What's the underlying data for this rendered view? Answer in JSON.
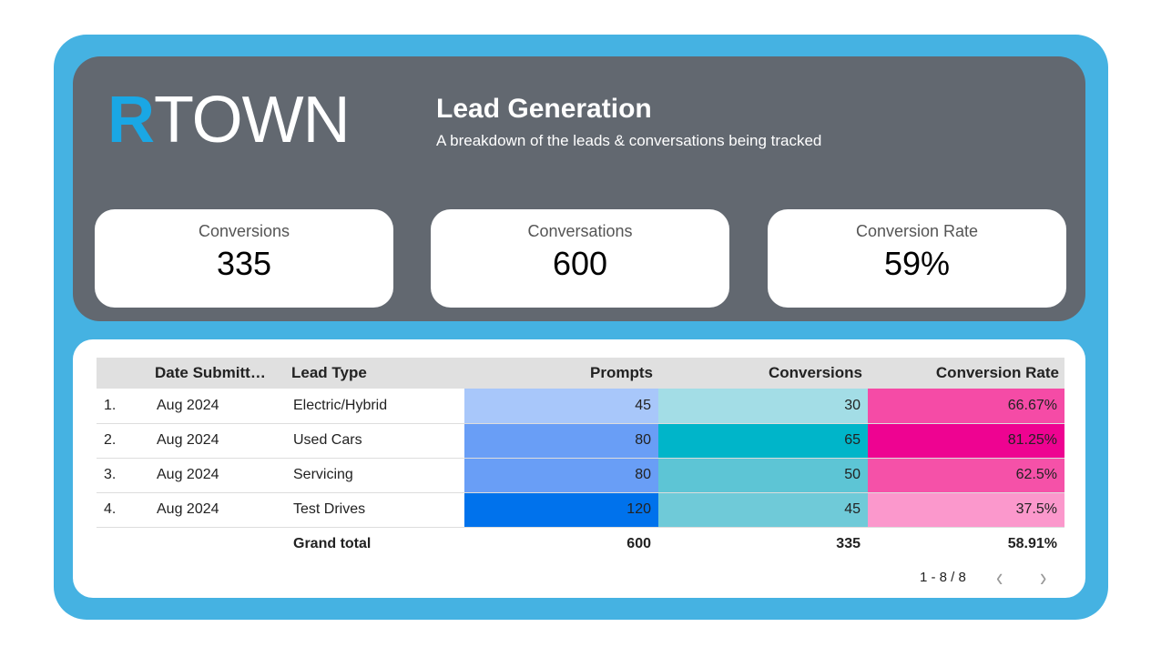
{
  "logo": {
    "accent": "R",
    "rest": "TOWN"
  },
  "header": {
    "title": "Lead Generation",
    "subtitle": "A breakdown of the leads & conversations being tracked"
  },
  "kpis": [
    {
      "label": "Conversions",
      "value": "335"
    },
    {
      "label": "Conversations",
      "value": "600"
    },
    {
      "label": "Conversion Rate",
      "value": "59%"
    }
  ],
  "table": {
    "columns": [
      "",
      "Date Submitt…",
      "Lead Type",
      "Prompts",
      "Conversions",
      "Conversion Rate"
    ],
    "rows": [
      {
        "idx": "1.",
        "date": "Aug 2024",
        "type": "Electric/Hybrid",
        "prompts": "45",
        "conv": "30",
        "rate": "66.67%",
        "c": [
          "#a8c7fa",
          "#a3dde6",
          "#f54ba6"
        ]
      },
      {
        "idx": "2.",
        "date": "Aug 2024",
        "type": "Used Cars",
        "prompts": "80",
        "conv": "65",
        "rate": "81.25%",
        "c": [
          "#699ef6",
          "#00b5c9",
          "#ee0391"
        ]
      },
      {
        "idx": "3.",
        "date": "Aug 2024",
        "type": "Servicing",
        "prompts": "80",
        "conv": "50",
        "rate": "62.5%",
        "c": [
          "#699ef6",
          "#5dc5d5",
          "#f551a8"
        ]
      },
      {
        "idx": "4.",
        "date": "Aug 2024",
        "type": "Test Drives",
        "prompts": "120",
        "conv": "45",
        "rate": "37.5%",
        "c": [
          "#0072ec",
          "#6fcad8",
          "#fb98cc"
        ]
      }
    ],
    "total": {
      "label": "Grand total",
      "prompts": "600",
      "conv": "335",
      "rate": "58.91%"
    }
  },
  "pager": {
    "text": "1 - 8 / 8"
  }
}
